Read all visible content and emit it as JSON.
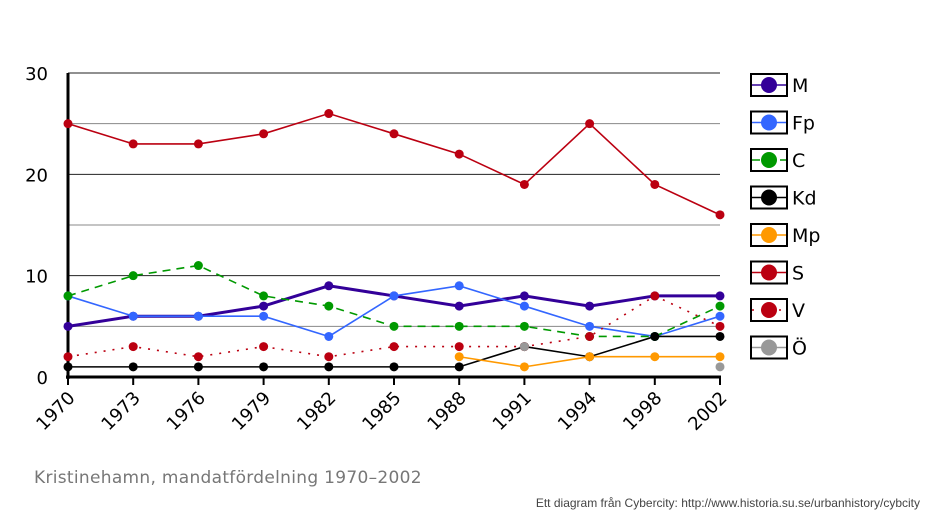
{
  "chart_data": {
    "type": "line",
    "title": "",
    "xlabel": "",
    "ylabel": "",
    "ylim": [
      0,
      30
    ],
    "yticks": [
      0,
      10,
      20,
      30
    ],
    "grid": true,
    "legend_placement": "right",
    "categories": [
      "1970",
      "1973",
      "1976",
      "1979",
      "1982",
      "1985",
      "1988",
      "1991",
      "1994",
      "1998",
      "2002"
    ],
    "series": [
      {
        "name": "M",
        "color": "#330099",
        "style": "solid-thick",
        "values": [
          5,
          6,
          6,
          7,
          9,
          8,
          7,
          8,
          7,
          8,
          8
        ]
      },
      {
        "name": "Fp",
        "color": "#3366ff",
        "style": "solid",
        "values": [
          8,
          6,
          6,
          6,
          4,
          8,
          9,
          7,
          5,
          4,
          6
        ]
      },
      {
        "name": "C",
        "color": "#009900",
        "style": "dashed",
        "values": [
          8,
          10,
          11,
          8,
          7,
          5,
          5,
          5,
          4,
          4,
          7
        ]
      },
      {
        "name": "Kd",
        "color": "#000000",
        "style": "solid",
        "values": [
          1,
          1,
          1,
          1,
          1,
          1,
          1,
          3,
          2,
          4,
          4
        ]
      },
      {
        "name": "Mp",
        "color": "#ff9900",
        "style": "solid",
        "values": [
          null,
          null,
          null,
          null,
          null,
          null,
          2,
          1,
          2,
          2,
          2
        ]
      },
      {
        "name": "S",
        "color": "#bb0011",
        "style": "solid",
        "values": [
          25,
          23,
          23,
          24,
          26,
          24,
          22,
          19,
          25,
          19,
          16
        ]
      },
      {
        "name": "V",
        "color": "#bb0011",
        "style": "dotted",
        "values": [
          2,
          3,
          2,
          3,
          2,
          3,
          3,
          3,
          4,
          8,
          5
        ]
      },
      {
        "name": "Ö",
        "color": "#999999",
        "style": "none",
        "values": [
          null,
          null,
          null,
          null,
          null,
          null,
          null,
          3,
          null,
          null,
          1
        ]
      }
    ]
  },
  "caption": "Kristinehamn, mandatfördelning 1970–2002",
  "credit": "Ett diagram från Cybercity: http://www.historia.su.se/urbanhistory/cybcity"
}
